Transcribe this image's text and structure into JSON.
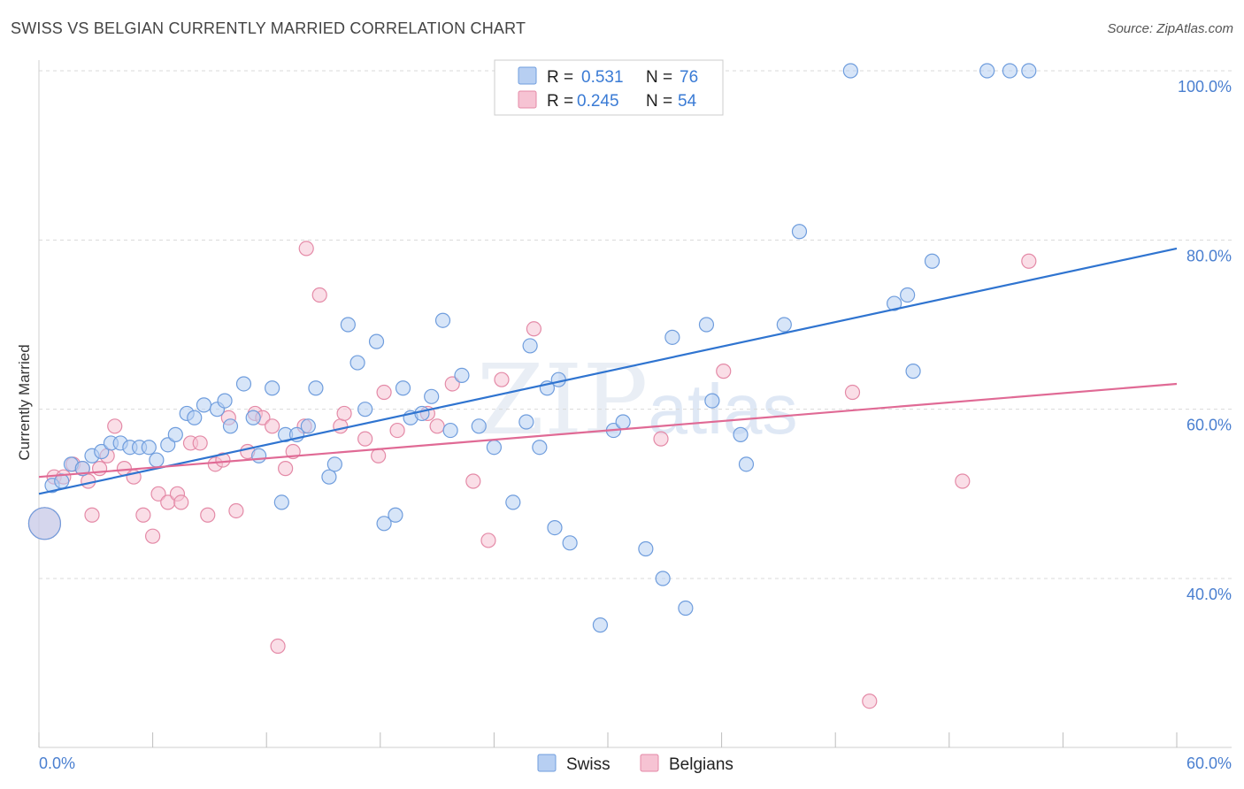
{
  "title": "SWISS VS BELGIAN CURRENTLY MARRIED CORRELATION CHART",
  "source": "Source: ZipAtlas.com",
  "watermark": "ZIPatlas",
  "legend": {
    "rows": [
      {
        "r_label": "R =",
        "r_value": "0.531",
        "n_label": "N =",
        "n_value": "76"
      },
      {
        "r_label": "R =",
        "r_value": "0.245",
        "n_label": "N =",
        "n_value": "54"
      }
    ]
  },
  "colors": {
    "swiss_fill": "#b7cff2",
    "swiss_stroke": "#6f9ddd",
    "swiss_line": "#2f74d0",
    "belgian_fill": "#f6c3d3",
    "belgian_stroke": "#e48aa7",
    "belgian_line": "#e06a95",
    "grid": "#d9d9d9",
    "tick_text": "#4a7fd0"
  },
  "chart_data": {
    "type": "scatter",
    "title": "SWISS VS BELGIAN CURRENTLY MARRIED CORRELATION CHART",
    "xlabel": "",
    "ylabel": "Currently Married",
    "xlim": [
      0,
      60
    ],
    "ylim": [
      20,
      102
    ],
    "x_tick_labels": [
      "0.0%",
      "60.0%"
    ],
    "y_ticks": [
      40,
      60,
      80,
      100
    ],
    "y_tick_labels": [
      "40.0%",
      "60.0%",
      "80.0%",
      "100.0%"
    ],
    "grid": true,
    "legend_position": "top-center",
    "series": [
      {
        "name": "Swiss",
        "r": 0.531,
        "n": 76,
        "trend": {
          "x": [
            0,
            60
          ],
          "y": [
            50.0,
            79.0
          ]
        },
        "points": [
          [
            0.3,
            46.5
          ],
          [
            0.7,
            51.0
          ],
          [
            1.2,
            51.5
          ],
          [
            1.7,
            53.5
          ],
          [
            2.3,
            53.0
          ],
          [
            2.8,
            54.5
          ],
          [
            3.3,
            55.0
          ],
          [
            3.8,
            56.0
          ],
          [
            4.3,
            56.0
          ],
          [
            4.8,
            55.5
          ],
          [
            5.3,
            55.5
          ],
          [
            5.8,
            55.5
          ],
          [
            6.2,
            54.0
          ],
          [
            6.8,
            55.8
          ],
          [
            7.2,
            57.0
          ],
          [
            7.8,
            59.5
          ],
          [
            8.2,
            59.0
          ],
          [
            8.7,
            60.5
          ],
          [
            9.4,
            60.0
          ],
          [
            9.8,
            61.0
          ],
          [
            10.1,
            58.0
          ],
          [
            10.8,
            63.0
          ],
          [
            11.3,
            59.0
          ],
          [
            11.6,
            54.5
          ],
          [
            12.3,
            62.5
          ],
          [
            12.8,
            49.0
          ],
          [
            13.0,
            57.0
          ],
          [
            13.6,
            57.0
          ],
          [
            14.2,
            58.0
          ],
          [
            14.6,
            62.5
          ],
          [
            15.3,
            52.0
          ],
          [
            15.6,
            53.5
          ],
          [
            16.3,
            70.0
          ],
          [
            16.8,
            65.5
          ],
          [
            17.2,
            60.0
          ],
          [
            17.8,
            68.0
          ],
          [
            18.2,
            46.5
          ],
          [
            18.8,
            47.5
          ],
          [
            19.2,
            62.5
          ],
          [
            19.6,
            59.0
          ],
          [
            20.2,
            59.5
          ],
          [
            20.7,
            61.5
          ],
          [
            21.3,
            70.5
          ],
          [
            21.7,
            57.5
          ],
          [
            22.3,
            64.0
          ],
          [
            23.2,
            58.0
          ],
          [
            24.0,
            55.5
          ],
          [
            25.0,
            49.0
          ],
          [
            25.7,
            58.5
          ],
          [
            25.9,
            67.5
          ],
          [
            26.4,
            55.5
          ],
          [
            26.8,
            62.5
          ],
          [
            27.4,
            63.5
          ],
          [
            27.2,
            46.0
          ],
          [
            28.0,
            44.2
          ],
          [
            29.6,
            34.5
          ],
          [
            30.3,
            57.5
          ],
          [
            30.8,
            58.5
          ],
          [
            32.0,
            43.5
          ],
          [
            32.9,
            40.0
          ],
          [
            33.4,
            68.5
          ],
          [
            34.1,
            36.5
          ],
          [
            35.2,
            70.0
          ],
          [
            35.5,
            61.0
          ],
          [
            37.0,
            57.0
          ],
          [
            37.3,
            53.5
          ],
          [
            39.3,
            70.0
          ],
          [
            40.1,
            81.0
          ],
          [
            42.8,
            100.0
          ],
          [
            45.1,
            72.5
          ],
          [
            45.8,
            73.5
          ],
          [
            46.1,
            64.5
          ],
          [
            47.1,
            77.5
          ],
          [
            50.0,
            100.0
          ],
          [
            51.2,
            100.0
          ],
          [
            52.2,
            100.0
          ]
        ]
      },
      {
        "name": "Belgians",
        "r": 0.245,
        "n": 54,
        "trend": {
          "x": [
            0,
            60
          ],
          "y": [
            52.0,
            63.0
          ]
        },
        "points": [
          [
            0.3,
            46.5
          ],
          [
            0.8,
            52.0
          ],
          [
            1.3,
            52.0
          ],
          [
            1.8,
            53.5
          ],
          [
            2.3,
            53.0
          ],
          [
            2.6,
            51.5
          ],
          [
            2.8,
            47.5
          ],
          [
            3.2,
            53.0
          ],
          [
            3.6,
            54.5
          ],
          [
            4.0,
            58.0
          ],
          [
            4.5,
            53.0
          ],
          [
            5.0,
            52.0
          ],
          [
            5.5,
            47.5
          ],
          [
            6.0,
            45.0
          ],
          [
            6.3,
            50.0
          ],
          [
            6.8,
            49.0
          ],
          [
            7.3,
            50.0
          ],
          [
            7.5,
            49.0
          ],
          [
            8.0,
            56.0
          ],
          [
            8.5,
            56.0
          ],
          [
            8.9,
            47.5
          ],
          [
            9.3,
            53.5
          ],
          [
            9.7,
            54.0
          ],
          [
            10.0,
            59.0
          ],
          [
            10.4,
            48.0
          ],
          [
            11.0,
            55.0
          ],
          [
            11.4,
            59.5
          ],
          [
            11.8,
            59.0
          ],
          [
            12.3,
            58.0
          ],
          [
            12.6,
            32.0
          ],
          [
            13.0,
            53.0
          ],
          [
            13.4,
            55.0
          ],
          [
            14.0,
            58.0
          ],
          [
            14.1,
            79.0
          ],
          [
            14.8,
            73.5
          ],
          [
            15.9,
            58.0
          ],
          [
            16.1,
            59.5
          ],
          [
            17.2,
            56.5
          ],
          [
            17.9,
            54.5
          ],
          [
            18.2,
            62.0
          ],
          [
            18.9,
            57.5
          ],
          [
            20.5,
            59.5
          ],
          [
            21.0,
            58.0
          ],
          [
            21.8,
            63.0
          ],
          [
            22.9,
            51.5
          ],
          [
            23.7,
            44.5
          ],
          [
            24.4,
            63.5
          ],
          [
            26.1,
            69.5
          ],
          [
            32.8,
            56.5
          ],
          [
            36.1,
            64.5
          ],
          [
            42.9,
            62.0
          ],
          [
            43.8,
            25.5
          ],
          [
            48.7,
            51.5
          ],
          [
            52.2,
            77.5
          ]
        ]
      }
    ]
  },
  "bottom_legend": [
    "Swiss",
    "Belgians"
  ]
}
